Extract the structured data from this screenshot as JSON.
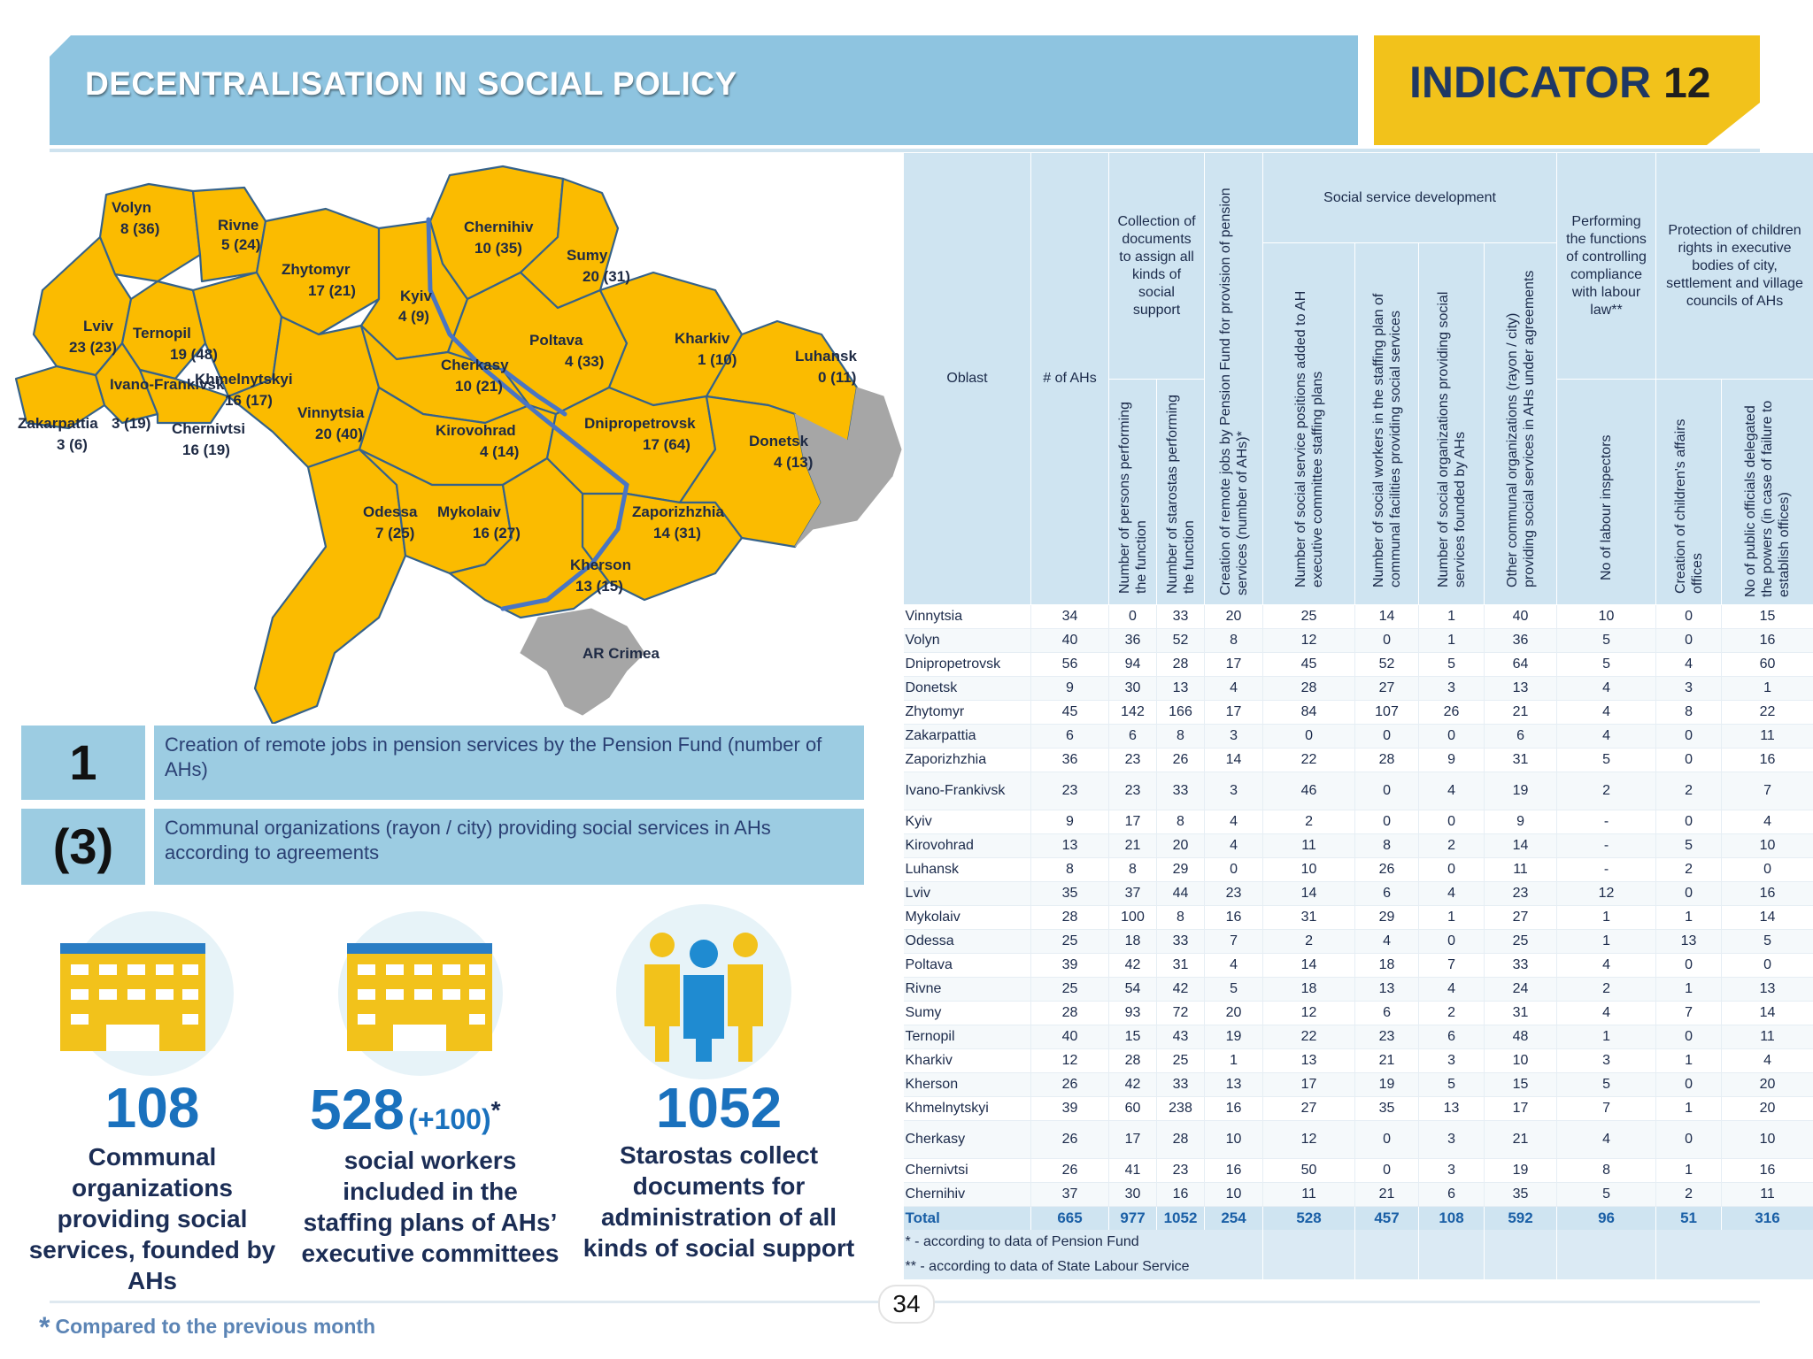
{
  "header": {
    "title": "DECENTRALISATION IN SOCIAL POLICY",
    "indicator_label": "INDICATOR",
    "indicator_number": "12"
  },
  "map": {
    "regions": [
      {
        "name": "Volyn",
        "value": "8 (36)"
      },
      {
        "name": "Rivne",
        "value": "5 (24)"
      },
      {
        "name": "Zhytomyr",
        "value": "17 (21)"
      },
      {
        "name": "Kyiv",
        "value": "4 (9)"
      },
      {
        "name": "Chernihiv",
        "value": "10 (35)"
      },
      {
        "name": "Sumy",
        "value": "20 (31)"
      },
      {
        "name": "Lviv",
        "value": "23 (23)"
      },
      {
        "name": "Ternopil",
        "value": "19 (48)"
      },
      {
        "name": "Khmelnytskyi",
        "value": "16 (17)"
      },
      {
        "name": "Ivano-Frankivsk",
        "value": "3 (19)"
      },
      {
        "name": "Zakarpattia",
        "value": "3 (6)"
      },
      {
        "name": "Chernivtsi",
        "value": "16 (19)"
      },
      {
        "name": "Vinnytsia",
        "value": "20 (40)"
      },
      {
        "name": "Cherkasy",
        "value": "10 (21)"
      },
      {
        "name": "Poltava",
        "value": "4 (33)"
      },
      {
        "name": "Kharkiv",
        "value": "1 (10)"
      },
      {
        "name": "Luhansk",
        "value": "0 (11)"
      },
      {
        "name": "Kirovohrad",
        "value": "4 (14)"
      },
      {
        "name": "Dnipropetrovsk",
        "value": "17 (64)"
      },
      {
        "name": "Donetsk",
        "value": "4 (13)"
      },
      {
        "name": "Odessa",
        "value": "7 (25)"
      },
      {
        "name": "Mykolaiv",
        "value": "16 (27)"
      },
      {
        "name": "Zaporizhzhia",
        "value": "14 (31)"
      },
      {
        "name": "Kherson",
        "value": "13 (15)"
      }
    ],
    "crimea_label": "AR Crimea"
  },
  "info_boxes": [
    {
      "number": "1",
      "text": "Creation of remote jobs in pension services by the Pension Fund (number of AHs)"
    },
    {
      "number": "(3)",
      "text": "Communal organizations (rayon / city) providing social services in AHs according to agreements"
    }
  ],
  "stats": [
    {
      "value": "108",
      "extra": "",
      "caption": "Communal organizations providing social services, founded by AHs",
      "icon": "building-icon"
    },
    {
      "value": "528",
      "extra": "(+100)",
      "extra_mark": "*",
      "caption": "social workers included in the staffing plans of AHs’ executive committees",
      "icon": "building-icon"
    },
    {
      "value": "1052",
      "extra": "",
      "caption": "Starostas collect documents for administration of all kinds of social support",
      "icon": "people-icon"
    }
  ],
  "footnote": {
    "mark": "*",
    "text": "Compared to the previous month"
  },
  "page_number": "34",
  "table": {
    "headers": {
      "oblast": "Oblast",
      "ahs": "# of AHs",
      "collection": "Collection of documents to assign all kinds of social support",
      "persons": "Number of persons performing the function",
      "starostas": "Number of starostas performing the function",
      "remote_jobs": "Creation of remote jobs by Pension Fund for provision of pension services (number of AHs)*",
      "social_dev": "Social service development",
      "positions": "Number of social service positions added to AH executive committee staffing plans",
      "workers": "Number of social workers in the staffing plan of communal facilities providing social services",
      "orgs": "Number of social organizations providing social services founded by AHs",
      "other_orgs": "Other communal organizations (rayon / city) providing social services in AHs under agreements",
      "labour": "Performing the functions of controlling compliance with labour law**",
      "inspectors": "No of labour inspectors",
      "children": "Protection of children rights in executive bodies of city, settlement and  village councils of AHs",
      "children_offices": "Creation of children's affairs offices",
      "officials": "No of public officials delegated the powers (in case of failure to establish offices)"
    },
    "rows": [
      [
        "Vinnytsia",
        "34",
        "0",
        "33",
        "20",
        "25",
        "14",
        "1",
        "40",
        "10",
        "0",
        "15"
      ],
      [
        "Volyn",
        "40",
        "36",
        "52",
        "8",
        "12",
        "0",
        "1",
        "36",
        "5",
        "0",
        "16"
      ],
      [
        "Dnipropetrovsk",
        "56",
        "94",
        "28",
        "17",
        "45",
        "52",
        "5",
        "64",
        "5",
        "4",
        "60"
      ],
      [
        "Donetsk",
        "9",
        "30",
        "13",
        "4",
        "28",
        "27",
        "3",
        "13",
        "4",
        "3",
        "1"
      ],
      [
        "Zhytomyr",
        "45",
        "142",
        "166",
        "17",
        "84",
        "107",
        "26",
        "21",
        "4",
        "8",
        "22"
      ],
      [
        "Zakarpattia",
        "6",
        "6",
        "8",
        "3",
        "0",
        "0",
        "0",
        "6",
        "4",
        "0",
        "11"
      ],
      [
        "Zaporizhzhia",
        "36",
        "23",
        "26",
        "14",
        "22",
        "28",
        "9",
        "31",
        "5",
        "0",
        "16"
      ],
      [
        "Ivano-Frankivsk",
        "23",
        "23",
        "33",
        "3",
        "46",
        "0",
        "4",
        "19",
        "2",
        "2",
        "7"
      ],
      [
        "Kyiv",
        "9",
        "17",
        "8",
        "4",
        "2",
        "0",
        "0",
        "9",
        "-",
        "0",
        "4"
      ],
      [
        "Kirovohrad",
        "13",
        "21",
        "20",
        "4",
        "11",
        "8",
        "2",
        "14",
        "-",
        "5",
        "10"
      ],
      [
        "Luhansk",
        "8",
        "8",
        "29",
        "0",
        "10",
        "26",
        "0",
        "11",
        "-",
        "2",
        "0"
      ],
      [
        "Lviv",
        "35",
        "37",
        "44",
        "23",
        "14",
        "6",
        "4",
        "23",
        "12",
        "0",
        "16"
      ],
      [
        "Mykolaiv",
        "28",
        "100",
        "8",
        "16",
        "31",
        "29",
        "1",
        "27",
        "1",
        "1",
        "14"
      ],
      [
        "Odessa",
        "25",
        "18",
        "33",
        "7",
        "2",
        "4",
        "0",
        "25",
        "1",
        "13",
        "5"
      ],
      [
        "Poltava",
        "39",
        "42",
        "31",
        "4",
        "14",
        "18",
        "7",
        "33",
        "4",
        "0",
        "0"
      ],
      [
        "Rivne",
        "25",
        "54",
        "42",
        "5",
        "18",
        "13",
        "4",
        "24",
        "2",
        "1",
        "13"
      ],
      [
        "Sumy",
        "28",
        "93",
        "72",
        "20",
        "12",
        "6",
        "2",
        "31",
        "4",
        "7",
        "14"
      ],
      [
        "Ternopil",
        "40",
        "15",
        "43",
        "19",
        "22",
        "23",
        "6",
        "48",
        "1",
        "0",
        "11"
      ],
      [
        "Kharkiv",
        "12",
        "28",
        "25",
        "1",
        "13",
        "21",
        "3",
        "10",
        "3",
        "1",
        "4"
      ],
      [
        "Kherson",
        "26",
        "42",
        "33",
        "13",
        "17",
        "19",
        "5",
        "15",
        "5",
        "0",
        "20"
      ],
      [
        "Khmelnytskyi",
        "39",
        "60",
        "238",
        "16",
        "27",
        "35",
        "13",
        "17",
        "7",
        "1",
        "20"
      ],
      [
        "Cherkasy",
        "26",
        "17",
        "28",
        "10",
        "12",
        "0",
        "3",
        "21",
        "4",
        "0",
        "10"
      ],
      [
        "Chernivtsi",
        "26",
        "41",
        "23",
        "16",
        "50",
        "0",
        "3",
        "19",
        "8",
        "1",
        "16"
      ],
      [
        "Chernihiv",
        "37",
        "30",
        "16",
        "10",
        "11",
        "21",
        "6",
        "35",
        "5",
        "2",
        "11"
      ]
    ],
    "total": [
      "Total",
      "665",
      "977",
      "1052",
      "254",
      "528",
      "457",
      "108",
      "592",
      "96",
      "51",
      "316"
    ],
    "footnotes": [
      "* - according to data of   Pension Fund",
      "** - according to data of State Labour Service"
    ]
  }
}
